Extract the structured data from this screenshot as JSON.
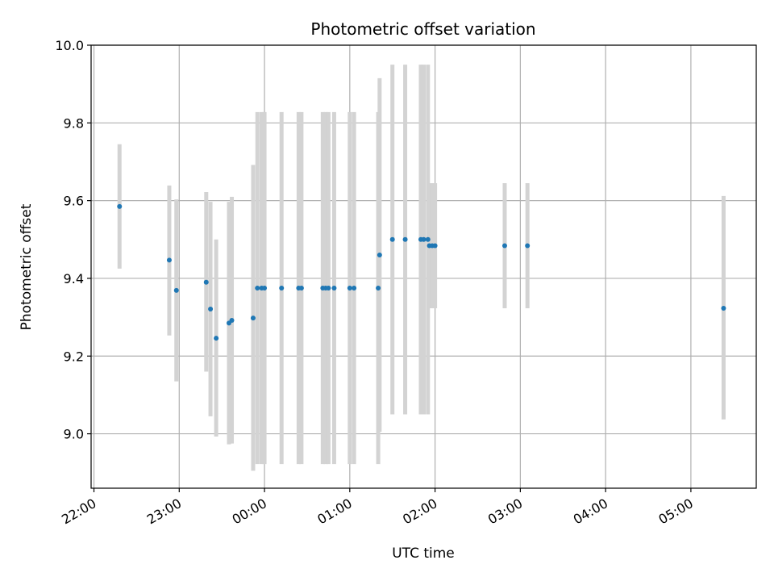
{
  "chart_data": {
    "type": "scatter",
    "title": "Photometric offset variation",
    "xlabel": "UTC time",
    "ylabel": "Photometric offset",
    "x_ticks": [
      "22:00",
      "23:00",
      "00:00",
      "01:00",
      "02:00",
      "03:00",
      "04:00",
      "05:00"
    ],
    "y_ticks": [
      "9.0",
      "9.2",
      "9.4",
      "9.6",
      "9.8",
      "10.0"
    ],
    "xlim": [
      "21:58",
      "05:46"
    ],
    "ylim": [
      8.86,
      10.0
    ],
    "grid": true,
    "marker_color": "#1f77b4",
    "errorbar_color": "#d3d3d3",
    "series": [
      {
        "points": [
          {
            "time": "22:18",
            "y": 9.585,
            "lo": 9.425,
            "hi": 9.745
          },
          {
            "time": "22:53",
            "y": 9.447,
            "lo": 9.253,
            "hi": 9.639
          },
          {
            "time": "22:58",
            "y": 9.369,
            "lo": 9.135,
            "hi": 9.603
          },
          {
            "time": "23:19",
            "y": 9.39,
            "lo": 9.16,
            "hi": 9.622
          },
          {
            "time": "23:22",
            "y": 9.321,
            "lo": 9.045,
            "hi": 9.597
          },
          {
            "time": "23:26",
            "y": 9.246,
            "lo": 8.993,
            "hi": 9.5
          },
          {
            "time": "23:35",
            "y": 9.285,
            "lo": 8.973,
            "hi": 9.597
          },
          {
            "time": "23:37",
            "y": 9.292,
            "lo": 8.975,
            "hi": 9.61
          },
          {
            "time": "23:52",
            "y": 9.298,
            "lo": 8.905,
            "hi": 9.692
          },
          {
            "time": "23:55",
            "y": 9.375,
            "lo": 8.922,
            "hi": 9.828
          },
          {
            "time": "23:58",
            "y": 9.375,
            "lo": 8.922,
            "hi": 9.828
          },
          {
            "time": "00:00",
            "y": 9.375,
            "lo": 8.922,
            "hi": 9.828
          },
          {
            "time": "00:12",
            "y": 9.375,
            "lo": 8.922,
            "hi": 9.828
          },
          {
            "time": "00:24",
            "y": 9.375,
            "lo": 8.922,
            "hi": 9.828
          },
          {
            "time": "00:26",
            "y": 9.375,
            "lo": 8.922,
            "hi": 9.828
          },
          {
            "time": "00:41",
            "y": 9.375,
            "lo": 8.922,
            "hi": 9.828
          },
          {
            "time": "00:43",
            "y": 9.375,
            "lo": 8.922,
            "hi": 9.828
          },
          {
            "time": "00:45",
            "y": 9.375,
            "lo": 8.922,
            "hi": 9.828
          },
          {
            "time": "00:49",
            "y": 9.375,
            "lo": 8.922,
            "hi": 9.828
          },
          {
            "time": "01:00",
            "y": 9.375,
            "lo": 8.922,
            "hi": 9.828
          },
          {
            "time": "01:03",
            "y": 9.375,
            "lo": 8.922,
            "hi": 9.828
          },
          {
            "time": "01:20",
            "y": 9.375,
            "lo": 8.922,
            "hi": 9.828
          },
          {
            "time": "01:21",
            "y": 9.46,
            "lo": 9.005,
            "hi": 9.915
          },
          {
            "time": "01:30",
            "y": 9.5,
            "lo": 9.05,
            "hi": 9.95
          },
          {
            "time": "01:39",
            "y": 9.5,
            "lo": 9.05,
            "hi": 9.95
          },
          {
            "time": "01:50",
            "y": 9.5,
            "lo": 9.05,
            "hi": 9.95
          },
          {
            "time": "01:52",
            "y": 9.5,
            "lo": 9.05,
            "hi": 9.95
          },
          {
            "time": "01:55",
            "y": 9.5,
            "lo": 9.05,
            "hi": 9.95
          },
          {
            "time": "01:56",
            "y": 9.484,
            "lo": 9.323,
            "hi": 9.645
          },
          {
            "time": "01:58",
            "y": 9.484,
            "lo": 9.323,
            "hi": 9.645
          },
          {
            "time": "02:00",
            "y": 9.484,
            "lo": 9.323,
            "hi": 9.645
          },
          {
            "time": "02:49",
            "y": 9.484,
            "lo": 9.323,
            "hi": 9.645
          },
          {
            "time": "03:05",
            "y": 9.484,
            "lo": 9.323,
            "hi": 9.645
          },
          {
            "time": "05:23",
            "y": 9.323,
            "lo": 9.037,
            "hi": 9.612
          }
        ]
      }
    ]
  }
}
